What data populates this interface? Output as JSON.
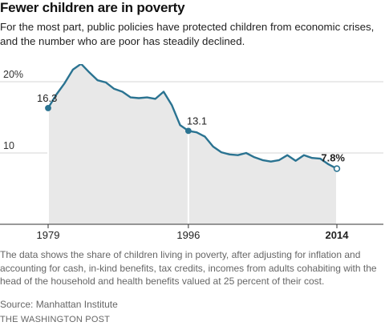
{
  "header": {
    "title": "Fewer children are in poverty",
    "subtitle": "For the most part, public policies have protected children from economic crises, and the number who are poor has steadily declined."
  },
  "footer": {
    "note": "The data shows the share of children living in poverty, after adjusting for inflation and accounting for cash, in-kind benefits, tax credits, incomes from adults cohabiting with the head of the household and health benefits valued at 25 percent of their cost.",
    "source": "Source: Manhattan Institute",
    "credit": "THE WASHINGTON POST"
  },
  "colors": {
    "line": "#2a7391",
    "area": "#e8e8e8",
    "grid": "#d6d6d6"
  },
  "chart_data": {
    "type": "line",
    "title": "Fewer children are in poverty",
    "xlabel": "",
    "ylabel": "",
    "xlim": [
      1979,
      2014
    ],
    "ylim": [
      5,
      25
    ],
    "y_ticks": [
      {
        "value": 10,
        "label": "10"
      },
      {
        "value": 20,
        "label": "20%"
      }
    ],
    "x_ticks": [
      {
        "value": 1979,
        "label": "1979",
        "bold": false
      },
      {
        "value": 1996,
        "label": "1996",
        "bold": false
      },
      {
        "value": 2014,
        "label": "2014",
        "bold": true
      }
    ],
    "grid": true,
    "x": [
      1979,
      1980,
      1981,
      1982,
      1983,
      1984,
      1985,
      1986,
      1987,
      1988,
      1989,
      1990,
      1991,
      1992,
      1993,
      1994,
      1995,
      1996,
      1997,
      1998,
      1999,
      2000,
      2001,
      2002,
      2003,
      2004,
      2005,
      2006,
      2007,
      2008,
      2009,
      2010,
      2011,
      2012,
      2013,
      2014
    ],
    "values": [
      16.3,
      18.2,
      19.8,
      21.7,
      22.5,
      21.3,
      20.2,
      19.9,
      19.0,
      18.6,
      17.8,
      17.7,
      17.8,
      17.6,
      18.6,
      16.7,
      13.9,
      13.1,
      12.9,
      12.3,
      10.9,
      10.1,
      9.8,
      9.7,
      10.0,
      9.4,
      9.0,
      8.8,
      9.0,
      9.7,
      8.9,
      9.7,
      9.3,
      9.2,
      8.4,
      7.8
    ],
    "annotations": [
      {
        "x": 1979,
        "value": 16.3,
        "label": "16.3",
        "style": "filled"
      },
      {
        "x": 1996,
        "value": 13.1,
        "label": "13.1",
        "style": "filled"
      },
      {
        "x": 2014,
        "value": 7.8,
        "label": "7.8%",
        "style": "open"
      }
    ]
  }
}
